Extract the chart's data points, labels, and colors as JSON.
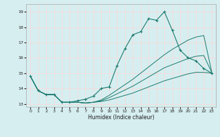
{
  "xlabel": "Humidex (Indice chaleur)",
  "bg_color": "#d6eef0",
  "grid_color": "#ffd6d6",
  "line_color": "#1a7a6e",
  "xlim": [
    -0.5,
    23.5
  ],
  "ylim": [
    12.8,
    19.5
  ],
  "xticks": [
    0,
    1,
    2,
    3,
    4,
    5,
    6,
    7,
    8,
    9,
    10,
    11,
    12,
    13,
    14,
    15,
    16,
    17,
    18,
    19,
    20,
    21,
    22,
    23
  ],
  "yticks": [
    13,
    14,
    15,
    16,
    17,
    18,
    19
  ],
  "line1_x": [
    0,
    1,
    2,
    3,
    4,
    5,
    6,
    7,
    8,
    9,
    10,
    11,
    12,
    13,
    14,
    15,
    16,
    17,
    18,
    19,
    20,
    21,
    22,
    23
  ],
  "line1_y": [
    14.8,
    13.85,
    13.6,
    13.6,
    13.1,
    13.1,
    13.2,
    13.3,
    13.5,
    14.0,
    14.1,
    15.5,
    16.6,
    17.5,
    17.7,
    18.55,
    18.45,
    19.0,
    17.8,
    16.5,
    16.0,
    15.8,
    15.3,
    15.0
  ],
  "line2_x": [
    0,
    1,
    2,
    3,
    4,
    5,
    6,
    7,
    8,
    9,
    10,
    11,
    12,
    13,
    14,
    15,
    16,
    17,
    18,
    19,
    20,
    21,
    22,
    23
  ],
  "line2_y": [
    14.8,
    13.85,
    13.6,
    13.6,
    13.1,
    13.1,
    13.1,
    13.05,
    13.1,
    13.15,
    13.25,
    13.4,
    13.55,
    13.7,
    13.9,
    14.1,
    14.3,
    14.5,
    14.65,
    14.8,
    14.95,
    15.05,
    15.05,
    15.0
  ],
  "line3_x": [
    0,
    1,
    2,
    3,
    4,
    5,
    6,
    7,
    8,
    9,
    10,
    11,
    12,
    13,
    14,
    15,
    16,
    17,
    18,
    19,
    20,
    21,
    22,
    23
  ],
  "line3_y": [
    14.8,
    13.85,
    13.6,
    13.6,
    13.1,
    13.1,
    13.1,
    13.05,
    13.1,
    13.2,
    13.4,
    13.65,
    13.9,
    14.15,
    14.45,
    14.75,
    15.05,
    15.35,
    15.55,
    15.75,
    15.95,
    16.1,
    16.15,
    15.05
  ],
  "line4_x": [
    0,
    1,
    2,
    3,
    4,
    5,
    6,
    7,
    8,
    9,
    10,
    11,
    12,
    13,
    14,
    15,
    16,
    17,
    18,
    19,
    20,
    21,
    22,
    23
  ],
  "line4_y": [
    14.8,
    13.85,
    13.6,
    13.6,
    13.1,
    13.1,
    13.1,
    13.05,
    13.1,
    13.25,
    13.55,
    13.9,
    14.25,
    14.6,
    15.0,
    15.4,
    15.8,
    16.2,
    16.55,
    16.85,
    17.15,
    17.35,
    17.45,
    15.1
  ]
}
